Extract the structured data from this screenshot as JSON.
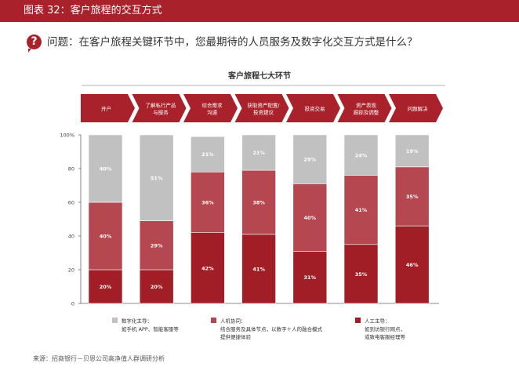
{
  "header": {
    "title": "图表 32：客户旅程的交互方式"
  },
  "question": {
    "badge": "?",
    "text": "问题：在客户旅程关键环节中，您最期待的人员服务及数字化交互方式是什么？"
  },
  "journey": {
    "title": "客户旅程七大环节",
    "stages": [
      [
        "开户"
      ],
      [
        "了解私行产品",
        "与服务"
      ],
      [
        "综合需求",
        "沟通"
      ],
      [
        "获取资产配置/",
        "投资建议"
      ],
      [
        "投资交易"
      ],
      [
        "资产表现",
        "跟踪及调整"
      ],
      [
        "问题解决"
      ]
    ]
  },
  "colors": {
    "digital": "#c1c1c1",
    "collab": "#b4474f",
    "human": "#a21e27",
    "accent": "#a8212b"
  },
  "chart_data": {
    "type": "bar",
    "stacked": true,
    "categories": [
      "开户",
      "了解私行产品与服务",
      "综合需求沟通",
      "获取资产配置/投资建议",
      "投资交易",
      "资产表现跟踪及调整",
      "问题解决"
    ],
    "series": [
      {
        "name": "人工主导",
        "values": [
          20,
          20,
          42,
          41,
          31,
          35,
          46
        ],
        "labels": [
          "20%",
          "20%",
          "42%",
          "41%",
          "31%",
          "35%",
          "46%"
        ]
      },
      {
        "name": "人机协同",
        "values": [
          40,
          29,
          36,
          38,
          40,
          41,
          35
        ],
        "labels": [
          "40%",
          "29%",
          "36%",
          "38%",
          "40%",
          "41%",
          "35%"
        ]
      },
      {
        "name": "数字化主导",
        "values": [
          40,
          51,
          21,
          21,
          29,
          24,
          19
        ],
        "labels": [
          "40%",
          "51%",
          "21%",
          "21%",
          "29%",
          "24%",
          "19%"
        ]
      }
    ],
    "ylim": [
      0,
      100
    ],
    "yticks": [
      "0",
      "20",
      "40",
      "60",
      "80",
      "100%"
    ]
  },
  "legend": [
    {
      "key": "digital",
      "title": "数字化主导：",
      "desc": [
        "如手机 APP、智能客服等"
      ]
    },
    {
      "key": "collab",
      "title": "人机协同：",
      "desc": [
        "结合服务及具体节点，以数字＋人的融合模式",
        "提供便捷体验"
      ]
    },
    {
      "key": "human",
      "title": "人工主导：",
      "desc": [
        "如到访银行网点，",
        "或致电客服经理等"
      ]
    }
  ],
  "source": "来源：招商银行－贝恩公司高净值人群调研分析"
}
